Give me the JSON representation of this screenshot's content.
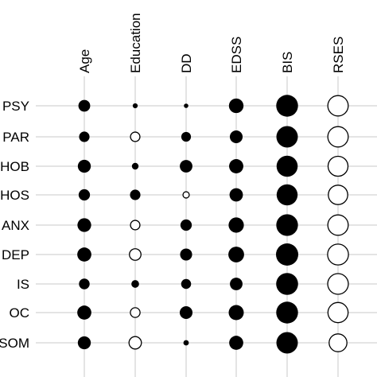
{
  "chart_data": {
    "type": "scatter",
    "subtype": "dot-matrix",
    "title": "",
    "xlabel": "",
    "ylabel": "",
    "columns": [
      "Age",
      "Education",
      "DD",
      "EDSS",
      "BIS",
      "RSES"
    ],
    "rows": [
      "PSY",
      "PAR",
      "HOB",
      "HOS",
      "ANX",
      "DEP",
      "IS",
      "OC",
      "SOM"
    ],
    "value_range": [
      -1,
      1
    ],
    "encoding": {
      "positive_color": "#000000",
      "negative_fill": "#ffffff",
      "negative_stroke": "#000000"
    },
    "values": [
      [
        0.28,
        0.05,
        0.04,
        0.43,
        0.96,
        -0.84
      ],
      [
        0.22,
        -0.18,
        0.19,
        0.33,
        0.93,
        -0.84
      ],
      [
        0.34,
        0.09,
        0.32,
        0.41,
        0.9,
        -0.8
      ],
      [
        0.26,
        0.22,
        -0.08,
        0.36,
        0.89,
        -0.76
      ],
      [
        0.38,
        -0.18,
        0.26,
        0.47,
        0.95,
        -0.84
      ],
      [
        0.4,
        -0.27,
        0.29,
        0.5,
        1.0,
        -0.88
      ],
      [
        0.23,
        0.12,
        0.2,
        0.32,
        0.97,
        -0.86
      ],
      [
        0.4,
        -0.19,
        0.33,
        0.46,
        0.96,
        -0.82
      ],
      [
        0.34,
        -0.31,
        0.06,
        0.4,
        0.93,
        -0.64
      ]
    ],
    "grid": true
  }
}
